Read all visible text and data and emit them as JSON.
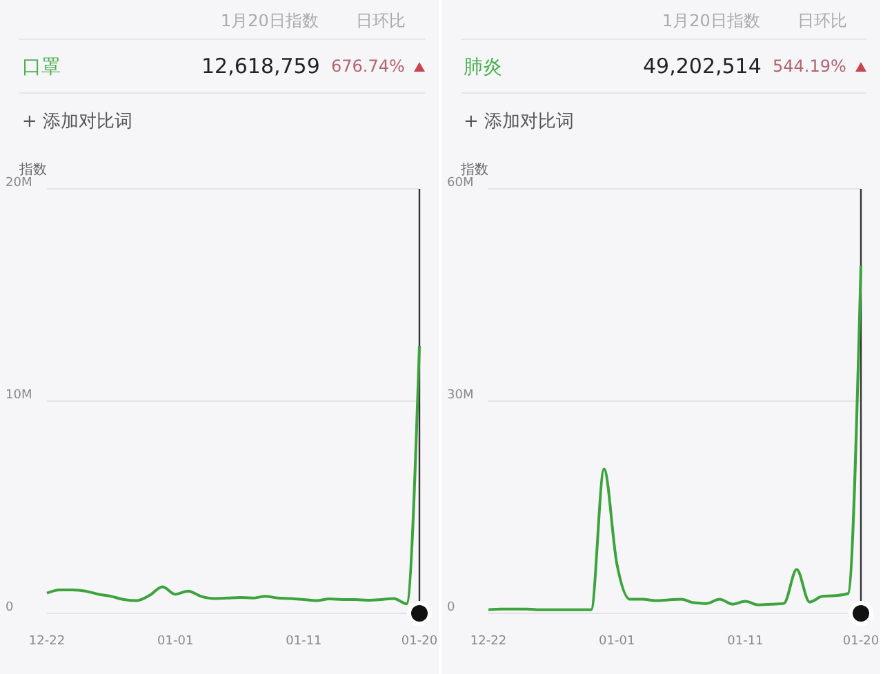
{
  "chart_data": [
    {
      "type": "line",
      "title": "口罩",
      "ylabel": "指数",
      "annotations": [
        "1月20日指数",
        "日环比",
        "12,618,759",
        "676.74%",
        "+ 添加对比词"
      ],
      "categories": [
        "12-22",
        null,
        null,
        null,
        null,
        null,
        null,
        null,
        null,
        null,
        "01-01",
        null,
        null,
        null,
        null,
        null,
        null,
        null,
        null,
        null,
        "01-11",
        null,
        null,
        null,
        null,
        null,
        null,
        null,
        null,
        "01-20"
      ],
      "series": [
        {
          "color": "#3da33d",
          "values": [
            950000,
            1100000,
            1100000,
            1050000,
            900000,
            800000,
            650000,
            600000,
            850000,
            1250000,
            900000,
            1050000,
            800000,
            700000,
            720000,
            750000,
            720000,
            800000,
            720000,
            700000,
            650000,
            600000,
            680000,
            650000,
            650000,
            620000,
            650000,
            700000,
            450000,
            12600000
          ]
        }
      ],
      "ylim": [
        0,
        20000000
      ],
      "yticks": [
        0,
        {
          "value": 10000000,
          "label": "10M"
        },
        {
          "value": 20000000,
          "label": "20M"
        }
      ],
      "grid": "y",
      "marker": "none",
      "line_style": "solid",
      "ref_lines": [
        {
          "axis": "x",
          "value": "01-20",
          "color": "#333333"
        }
      ]
    },
    {
      "type": "line",
      "title": "肺炎",
      "ylabel": "指数",
      "annotations": [
        "1月20日指数",
        "日环比",
        "49,202,514",
        "544.19%",
        "+ 添加对比词"
      ],
      "categories": [
        "12-22",
        null,
        null,
        null,
        null,
        null,
        null,
        null,
        null,
        null,
        "01-01",
        null,
        null,
        null,
        null,
        null,
        null,
        null,
        null,
        null,
        "01-11",
        null,
        null,
        null,
        null,
        null,
        null,
        null,
        null,
        "01-20"
      ],
      "series": [
        {
          "color": "#3da33d",
          "values": [
            500000,
            600000,
            600000,
            600000,
            500000,
            500000,
            500000,
            500000,
            500000,
            20400000,
            7000000,
            2000000,
            2000000,
            1800000,
            1900000,
            2000000,
            1500000,
            1400000,
            2000000,
            1300000,
            1700000,
            1200000,
            1300000,
            1400000,
            6200000,
            1600000,
            2400000,
            2500000,
            2800000,
            49200000
          ]
        }
      ],
      "ylim": [
        0,
        60000000
      ],
      "yticks": [
        0,
        {
          "value": 30000000,
          "label": "30M"
        },
        {
          "value": 60000000,
          "label": "60M"
        }
      ],
      "grid": "y",
      "marker": "none",
      "line_style": "solid",
      "ref_lines": [
        {
          "axis": "x",
          "value": "01-20",
          "color": "#333333"
        }
      ]
    }
  ]
}
